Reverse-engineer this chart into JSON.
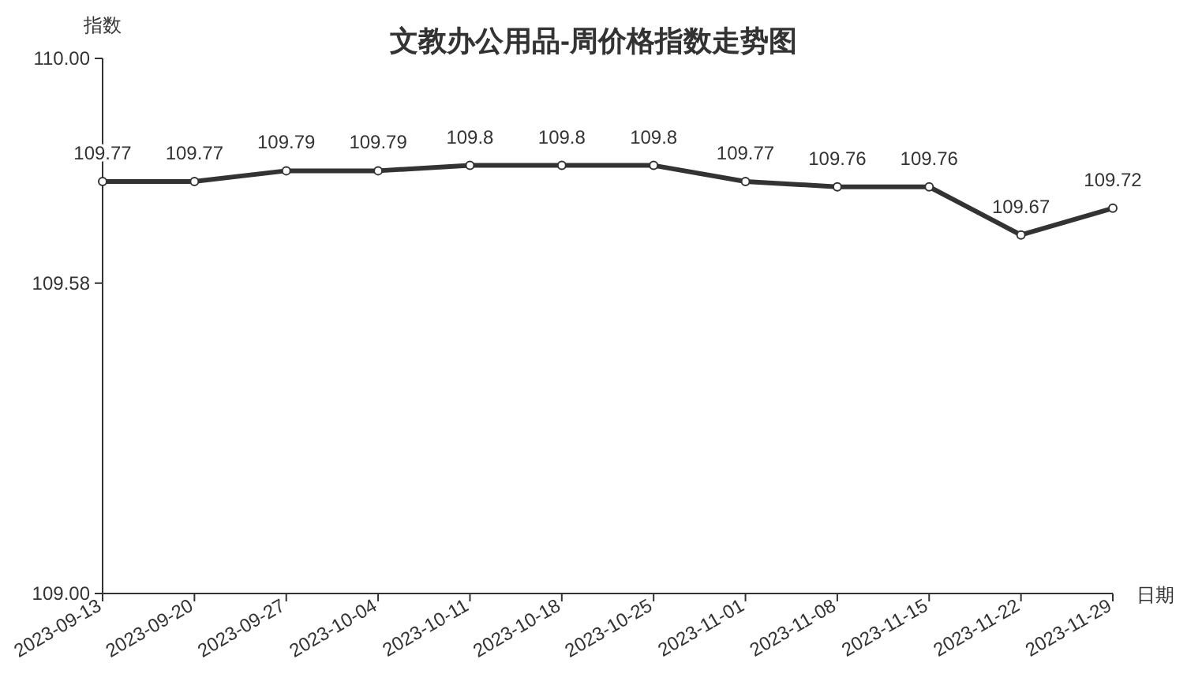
{
  "chart_data": {
    "type": "line",
    "title": "文教办公用品-周价格指数走势图",
    "ylabel": "指数",
    "xlabel": "日期",
    "categories": [
      "2023-09-13",
      "2023-09-20",
      "2023-09-27",
      "2023-10-04",
      "2023-10-11",
      "2023-10-18",
      "2023-10-25",
      "2023-11-01",
      "2023-11-08",
      "2023-11-15",
      "2023-11-22",
      "2023-11-29"
    ],
    "series": [
      {
        "color": "#333333",
        "values": [
          109.77,
          109.77,
          109.79,
          109.79,
          109.8,
          109.8,
          109.8,
          109.77,
          109.76,
          109.76,
          109.67,
          109.72
        ]
      }
    ],
    "ylim": [
      109,
      110
    ],
    "yticks": [
      {
        "value": 109,
        "label": "109.00"
      },
      {
        "value": 109.58,
        "label": "109.58"
      },
      {
        "value": 110,
        "label": "110.00"
      }
    ],
    "data_labels": true,
    "marker": "circle",
    "line_style": "solid",
    "grid": false
  }
}
